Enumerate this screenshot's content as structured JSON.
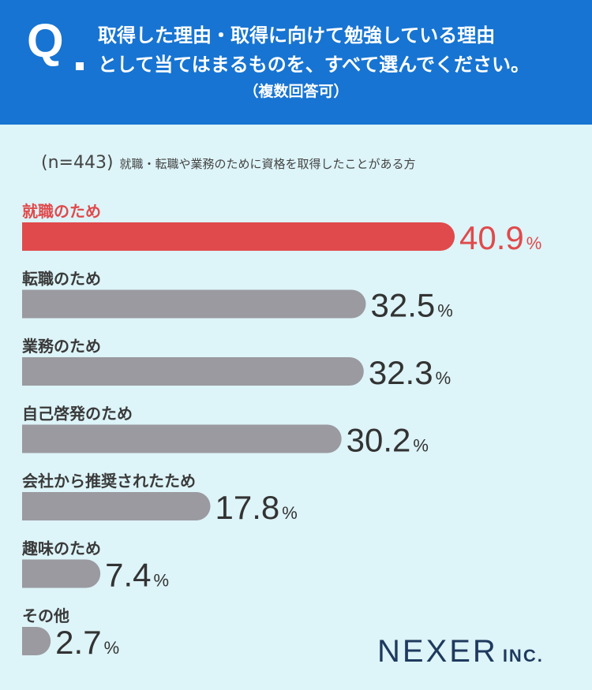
{
  "header": {
    "q_mark": "Q",
    "question_line1": "取得した理由・取得に向けて勉強している理由",
    "question_line2": "として当てはまるものを、すべて選んでください。",
    "note": "（複数回答可）"
  },
  "sample": {
    "n_label": "(n=443)",
    "description": "就職・転職や業務のために資格を取得したことがある方"
  },
  "chart_data": {
    "type": "bar",
    "orientation": "horizontal",
    "unit": "%",
    "categories": [
      "就職のため",
      "転職のため",
      "業務のため",
      "自己啓発のため",
      "会社から推奨されたため",
      "趣味のため",
      "その他"
    ],
    "values": [
      40.9,
      32.5,
      32.3,
      30.2,
      17.8,
      7.4,
      2.7
    ],
    "highlight_index": 0,
    "colors": {
      "highlight": "#e04a4c",
      "default": "#9a9aa0",
      "value_text": "#333333"
    }
  },
  "logo": {
    "main": "NEXER",
    "suffix": "INC."
  }
}
